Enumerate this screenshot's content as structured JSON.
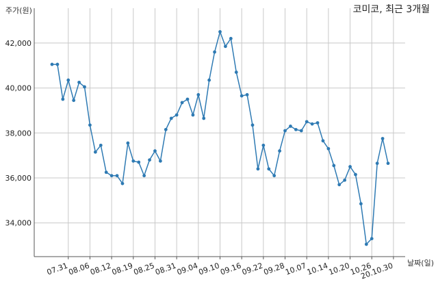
{
  "chart_data": {
    "type": "line",
    "title": "코미코, 최근 3개월",
    "ylabel": "주가(원)",
    "xlabel": "날짜(일)",
    "ylim": [
      32500,
      43000
    ],
    "yticks": [
      34000,
      36000,
      38000,
      40000,
      42000
    ],
    "ytick_labels": [
      "34,000",
      "36,000",
      "38,000",
      "40,000",
      "42,000"
    ],
    "xtick_labels": [
      "07.31",
      "08.06",
      "08.12",
      "08.19",
      "08.25",
      "08.31",
      "09.04",
      "09.10",
      "09.16",
      "09.22",
      "09.28",
      "10.07",
      "10.14",
      "10.20",
      "10.26",
      "20.10.30"
    ],
    "xtick_index": [
      3,
      7,
      11,
      15,
      19,
      23,
      27,
      31,
      35,
      39,
      43,
      47,
      51,
      55,
      59,
      63
    ],
    "grid": true,
    "series": [
      {
        "color": "#2e7ab3",
        "values": [
          41050,
          41050,
          39500,
          40350,
          39450,
          40250,
          40050,
          38350,
          37150,
          37450,
          36250,
          36100,
          36100,
          35750,
          37550,
          36750,
          36700,
          36100,
          36800,
          37200,
          36750,
          38150,
          38650,
          38800,
          39350,
          39500,
          38800,
          39700,
          38650,
          40350,
          41600,
          42500,
          41850,
          42200,
          40700,
          39650,
          39700,
          38350,
          36400,
          37450,
          36400,
          36100,
          37200,
          38100,
          38300,
          38150,
          38100,
          38500,
          38400,
          38450,
          37650,
          37300,
          36550,
          35700,
          35900,
          36500,
          36150,
          34850,
          33050,
          33300,
          36650,
          37750,
          36650
        ]
      }
    ]
  }
}
